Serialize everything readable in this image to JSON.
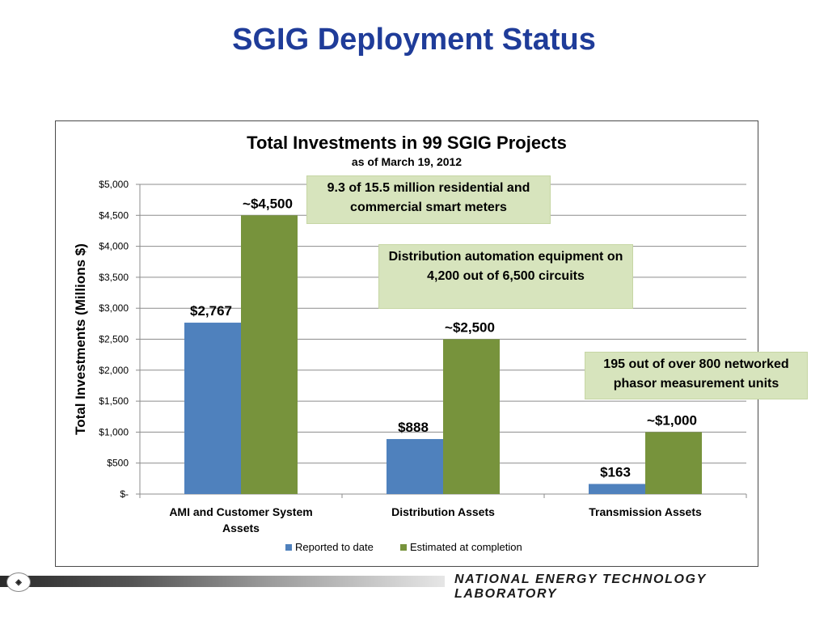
{
  "slide": {
    "title": "SGIG Deployment Status",
    "footer_text": "NATIONAL ENERGY TECHNOLOGY LABORATORY",
    "logo_icon": "doe-seal-icon"
  },
  "chart_data": {
    "type": "bar",
    "title": "Total Investments in 99 SGIG Projects",
    "subtitle": "as of March 19, 2012",
    "ylabel": "Total Investments (Millions $)",
    "xlabel": "",
    "ylim": [
      0,
      5000
    ],
    "yticks": [
      0,
      500,
      1000,
      1500,
      2000,
      2500,
      3000,
      3500,
      4000,
      4500,
      5000
    ],
    "ytick_labels": [
      "$-",
      "$500",
      "$1,000",
      "$1,500",
      "$2,000",
      "$2,500",
      "$3,000",
      "$3,500",
      "$4,000",
      "$4,500",
      "$5,000"
    ],
    "categories": [
      "AMI and Customer System Assets",
      "Distribution Assets",
      "Transmission Assets"
    ],
    "category_labels": [
      [
        "AMI and Customer System",
        "Assets"
      ],
      [
        "Distribution Assets"
      ],
      [
        "Transmission Assets"
      ]
    ],
    "grid": true,
    "legend_position": "bottom",
    "series": [
      {
        "name": "Reported to date",
        "color": "#4f81bd",
        "values": [
          2767,
          888,
          163
        ],
        "labels": [
          "$2,767",
          "$888",
          "$163"
        ]
      },
      {
        "name": "Estimated at completion",
        "color": "#77933c",
        "values": [
          4500,
          2500,
          1000
        ],
        "labels": [
          "~$4,500",
          "~$2,500",
          "~$1,000"
        ]
      }
    ],
    "annotations": [
      "9.3 of 15.5 million residential and commercial smart meters",
      "Distribution automation equipment on 4,200 out of 6,500 circuits",
      "195 out of over 800 networked phasor measurement units"
    ]
  }
}
